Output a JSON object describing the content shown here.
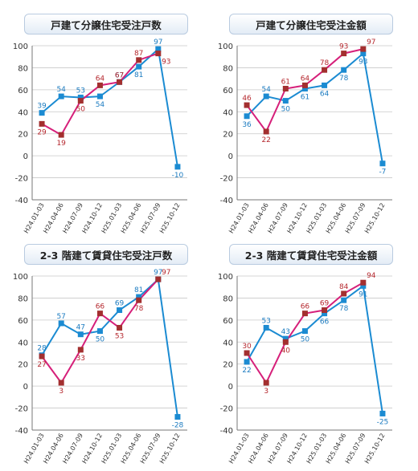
{
  "chart_data": [
    {
      "type": "line",
      "title": "戸建て分譲住宅受注戸数",
      "categories": [
        "H24.01-03",
        "H24.04-06",
        "H24.07-09",
        "H24.10-12",
        "H25.01-03",
        "H25.04-06",
        "H25.07-09",
        "H25.10-12"
      ],
      "ylim": [
        -40,
        100
      ],
      "yticks": [
        "100",
        "80",
        "60",
        "40",
        "20",
        "0",
        "-20",
        "-40"
      ],
      "grid": true,
      "series": [
        {
          "color": "#1b8bd2",
          "values": [
            39,
            54,
            53,
            54,
            67,
            81,
            97,
            -10
          ]
        },
        {
          "color": "#d6207a",
          "marker_color": "#a32f2f",
          "values": [
            29,
            19,
            50,
            64,
            67,
            87,
            93,
            null
          ]
        }
      ]
    },
    {
      "type": "line",
      "title": "戸建て分譲住宅受注金額",
      "categories": [
        "H24.01-03",
        "H24.04-06",
        "H24.07-09",
        "H24.10-12",
        "H25.01-03",
        "H25.04-06",
        "H25.07-09",
        "H25.10-12"
      ],
      "ylim": [
        -40,
        100
      ],
      "yticks": [
        "100",
        "80",
        "60",
        "40",
        "20",
        "0",
        "-20",
        "-40"
      ],
      "grid": true,
      "series": [
        {
          "color": "#1b8bd2",
          "values": [
            36,
            54,
            50,
            61,
            64,
            78,
            93,
            -7
          ]
        },
        {
          "color": "#d6207a",
          "marker_color": "#a32f2f",
          "values": [
            46,
            22,
            61,
            64,
            78,
            93,
            97,
            null
          ]
        }
      ]
    },
    {
      "type": "line",
      "title": "2-3 階建て賃貸住宅受注戸数",
      "categories": [
        "H24.01-03",
        "H24.04-06",
        "H24.07-09",
        "H24.10-12",
        "H25.01-03",
        "H25.04-06",
        "H25.07-09",
        "H25.10-12"
      ],
      "ylim": [
        -40,
        100
      ],
      "yticks": [
        "100",
        "80",
        "60",
        "40",
        "20",
        "0",
        "-20",
        "-40"
      ],
      "grid": true,
      "series": [
        {
          "color": "#1b8bd2",
          "values": [
            28,
            57,
            47,
            50,
            69,
            81,
            97,
            -28
          ]
        },
        {
          "color": "#d6207a",
          "marker_color": "#a32f2f",
          "values": [
            27,
            3,
            33,
            66,
            53,
            78,
            97,
            null
          ]
        }
      ]
    },
    {
      "type": "line",
      "title": "2-3 階建て賃貸住宅受注金額",
      "categories": [
        "H24.01-03",
        "H24.04-06",
        "H24.07-09",
        "H24.10-12",
        "H25.01-03",
        "H25.04-06",
        "H25.07-09",
        "H25.10-12"
      ],
      "ylim": [
        -40,
        100
      ],
      "yticks": [
        "100",
        "80",
        "60",
        "40",
        "20",
        "0",
        "-20",
        "-40"
      ],
      "grid": true,
      "series": [
        {
          "color": "#1b8bd2",
          "values": [
            22,
            53,
            43,
            50,
            66,
            78,
            91,
            -25
          ]
        },
        {
          "color": "#d6207a",
          "marker_color": "#a32f2f",
          "values": [
            30,
            3,
            40,
            66,
            69,
            84,
            94,
            null
          ]
        }
      ]
    }
  ]
}
